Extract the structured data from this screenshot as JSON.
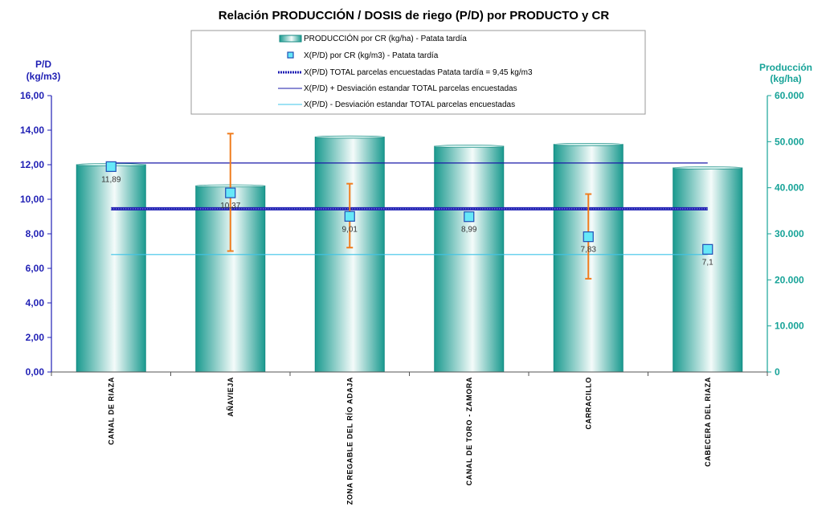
{
  "chart_data": {
    "type": "bar",
    "title": "Relación PRODUCCIÓN / DOSIS de riego (P/D) por PRODUCTO y CR",
    "categories": [
      "CANAL DE RIAZA",
      "AÑAVIEJA",
      "ZONA REGABLE DEL RÍO ADAJA",
      "CANAL DE TORO - ZAMORA",
      "CARRACILLO",
      "CABECERA DEL RIAZA"
    ],
    "y_left": {
      "label_line1": "P/D",
      "label_line2": "(kg/m3)",
      "ylim": [
        0,
        16
      ],
      "ticks": [
        "0,00",
        "2,00",
        "4,00",
        "6,00",
        "8,00",
        "10,00",
        "12,00",
        "14,00",
        "16,00"
      ],
      "tick_values": [
        0,
        2,
        4,
        6,
        8,
        10,
        12,
        14,
        16
      ]
    },
    "y_right": {
      "label_line1": "Producción",
      "label_line2": "(kg/ha)",
      "ylim": [
        0,
        60000
      ],
      "ticks": [
        "0",
        "10.000",
        "20.000",
        "30.000",
        "40.000",
        "50.000",
        "60.000"
      ],
      "tick_values": [
        0,
        10000,
        20000,
        30000,
        40000,
        50000,
        60000
      ]
    },
    "series": [
      {
        "name": "PRODUCCIÓN por CR (kg/ha) - Patata tardía",
        "kind": "bar",
        "axis": "right",
        "values": [
          45000,
          40400,
          51000,
          49000,
          49400,
          44300
        ]
      },
      {
        "name": "X(P/D) por CR (kg/m3) - Patata tardía",
        "kind": "marker",
        "axis": "left",
        "values": [
          11.89,
          10.37,
          9.01,
          8.99,
          7.83,
          7.1
        ],
        "data_labels": [
          "11,89",
          "10,37",
          "9,01",
          "8,99",
          "7,83",
          "7,1"
        ],
        "error_low": [
          null,
          7.0,
          7.2,
          null,
          5.4,
          null
        ],
        "error_high": [
          null,
          13.8,
          10.9,
          null,
          10.3,
          null
        ]
      },
      {
        "name": "X(P/D) TOTAL parcelas encuestadas Patata tardía = 9,45 kg/m3",
        "kind": "hline",
        "axis": "left",
        "value": 9.45
      },
      {
        "name": "X(P/D) + Desviación estandar TOTAL parcelas encuestadas",
        "kind": "hline",
        "axis": "left",
        "value": 12.1
      },
      {
        "name": "X(P/D) - Desviación estandar TOTAL parcelas encuestadas",
        "kind": "hline",
        "axis": "left",
        "value": 6.8
      }
    ],
    "legend_position": "top-center",
    "grid": false
  },
  "colors": {
    "bar_edge": "#138a82",
    "bar_dark": "#1a9a8f",
    "bar_light": "#f4fbfa",
    "marker_fill": "#66e8f8",
    "marker_edge": "#1f4fb4",
    "error_bar": "#f07d1e",
    "mean_line": "#1f1fb4",
    "plus_line": "#1a1aa8",
    "minus_line": "#3ec4e8",
    "left_axis": "#1f1fb4",
    "right_axis": "#17a398"
  }
}
